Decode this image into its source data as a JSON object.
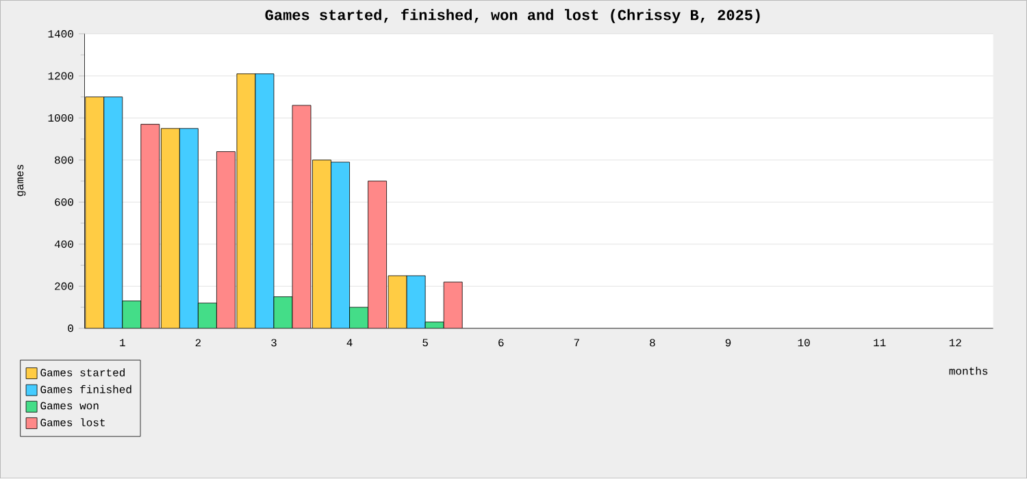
{
  "chart_data": {
    "type": "bar",
    "title": "Games started, finished, won and lost (Chrissy B, 2025)",
    "xlabel": "months",
    "ylabel": "games",
    "categories": [
      "1",
      "2",
      "3",
      "4",
      "5",
      "6",
      "7",
      "8",
      "9",
      "10",
      "11",
      "12"
    ],
    "series": [
      {
        "name": "Games started",
        "color": "#ffcc44",
        "values": [
          1100,
          950,
          1210,
          800,
          250,
          null,
          null,
          null,
          null,
          null,
          null,
          null
        ]
      },
      {
        "name": "Games finished",
        "color": "#44ccff",
        "values": [
          1100,
          950,
          1210,
          790,
          250,
          null,
          null,
          null,
          null,
          null,
          null,
          null
        ]
      },
      {
        "name": "Games won",
        "color": "#44dd88",
        "values": [
          130,
          120,
          150,
          100,
          30,
          null,
          null,
          null,
          null,
          null,
          null,
          null
        ]
      },
      {
        "name": "Games lost",
        "color": "#ff8888",
        "values": [
          970,
          840,
          1060,
          700,
          220,
          null,
          null,
          null,
          null,
          null,
          null,
          null
        ]
      }
    ],
    "ylim": [
      0,
      1400
    ],
    "yticks": [
      0,
      200,
      400,
      600,
      800,
      1000,
      1200,
      1400
    ],
    "grid": "y",
    "legend": "bottom left"
  }
}
